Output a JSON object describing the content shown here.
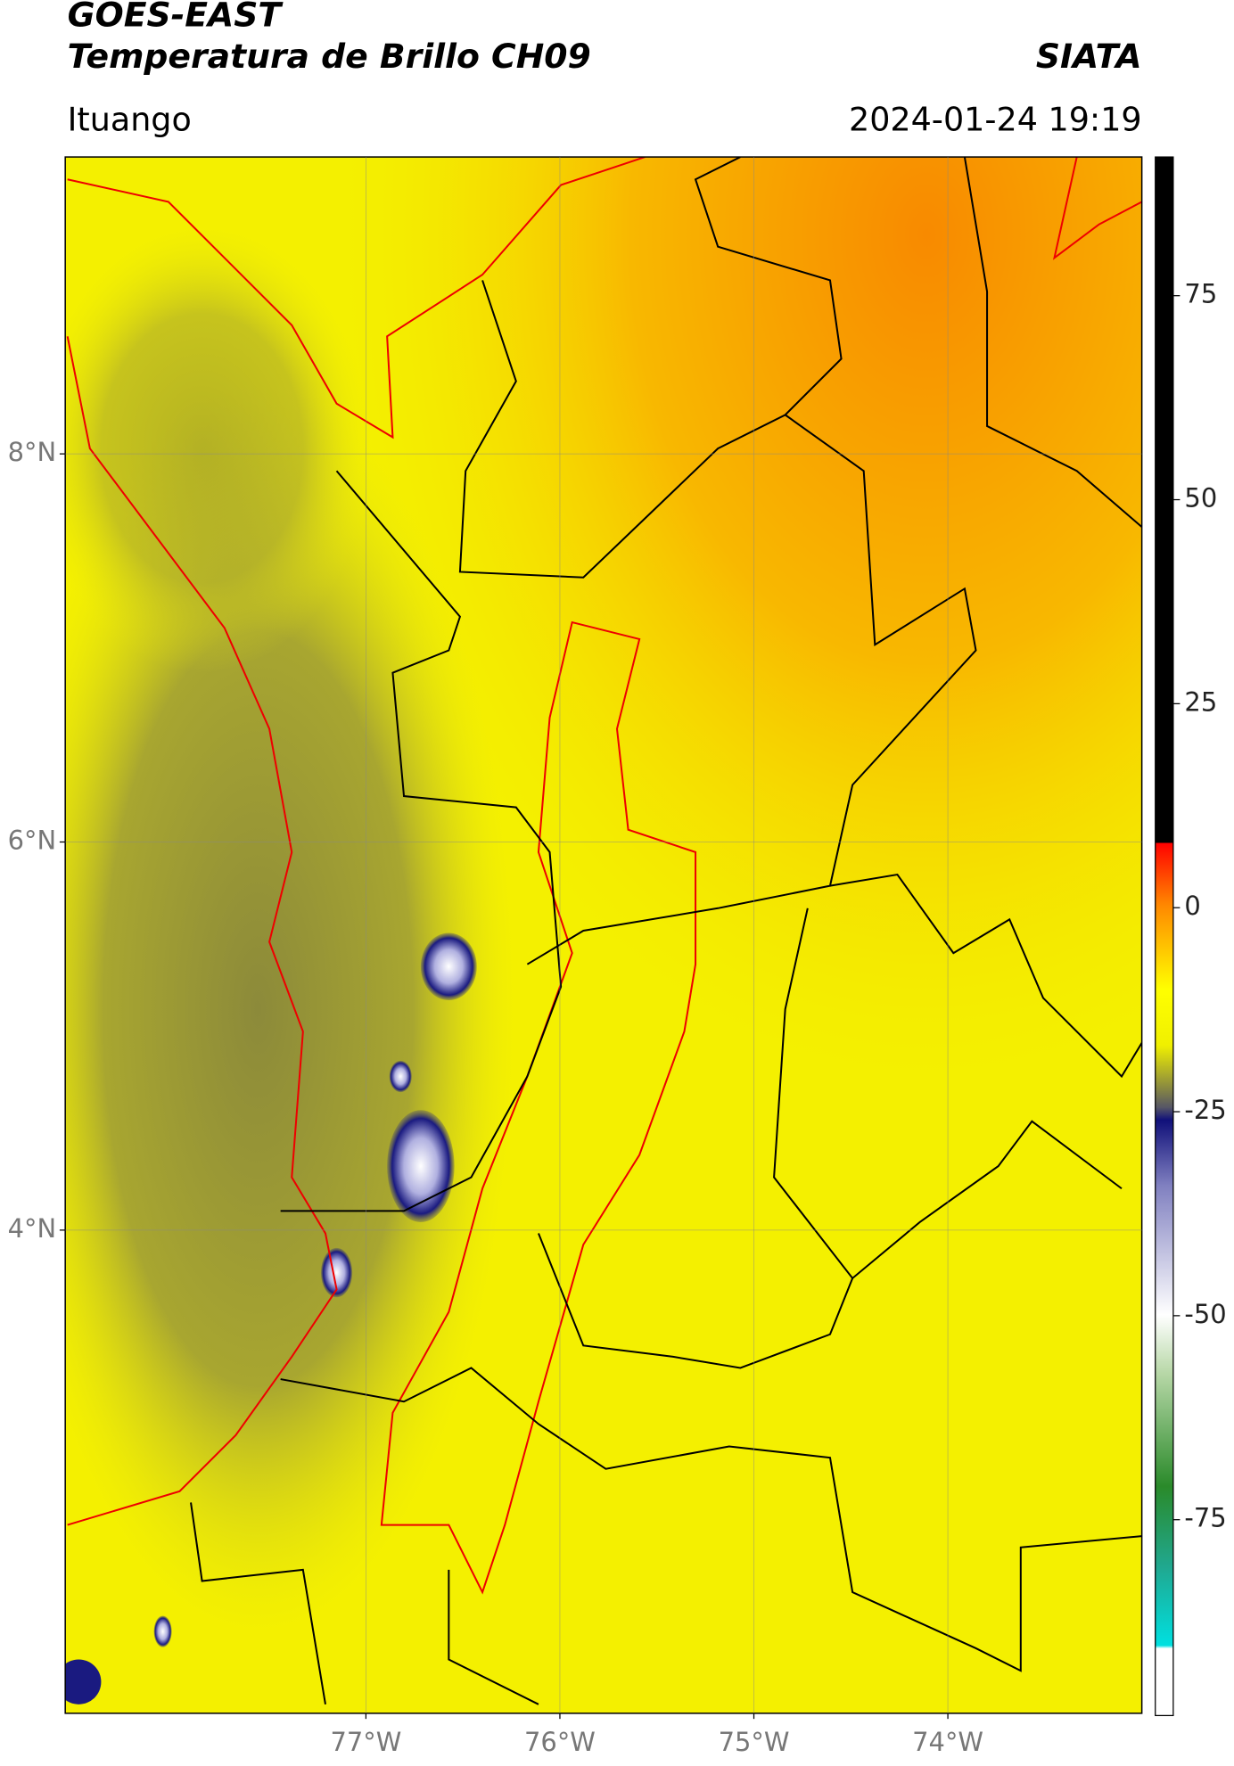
{
  "header": {
    "title": "GOES-EAST",
    "subtitle": "Temperatura de Brillo CH09",
    "brand": "SIATA",
    "location": "Ituango",
    "timestamp": "2024-01-24 19:19"
  },
  "map": {
    "lon_range": [
      -78.55,
      -73.0
    ],
    "lat_range": [
      1.51,
      9.53
    ],
    "lat_ticks": [
      {
        "value": 8,
        "label": "8°N"
      },
      {
        "value": 6,
        "label": "6°N"
      },
      {
        "value": 4,
        "label": "4°N"
      }
    ],
    "lon_ticks": [
      {
        "value": -77,
        "label": "77°W"
      },
      {
        "value": -76,
        "label": "76°W"
      },
      {
        "value": -75,
        "label": "75°W"
      },
      {
        "value": -74,
        "label": "74°W"
      }
    ]
  },
  "colorbar": {
    "range": [
      -99,
      92
    ],
    "ticks": [
      75,
      50,
      25,
      0,
      -25,
      -50,
      -75
    ]
  }
}
